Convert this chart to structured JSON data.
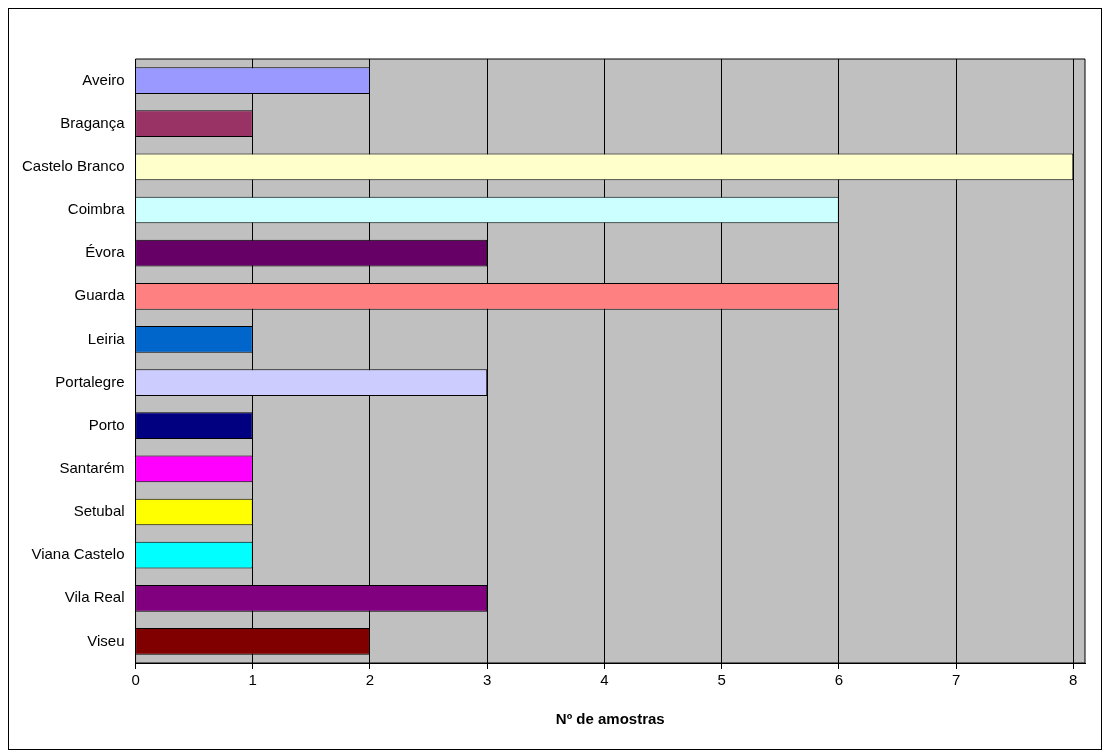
{
  "chart_data": {
    "type": "bar",
    "orientation": "horizontal",
    "xlabel": "Nº de amostras",
    "categories": [
      "Aveiro",
      "Bragança",
      "Castelo Branco",
      "Coimbra",
      "Évora",
      "Guarda",
      "Leiria",
      "Portalegre",
      "Porto",
      "Santarém",
      "Setubal",
      "Viana Castelo",
      "Vila Real",
      "Viseu"
    ],
    "values": [
      2,
      1,
      8,
      6,
      3,
      6,
      1,
      3,
      1,
      1,
      1,
      1,
      3,
      2
    ],
    "colors": [
      "#9999ff",
      "#993366",
      "#ffffcc",
      "#ccffff",
      "#660066",
      "#ff8080",
      "#0066cc",
      "#ccccff",
      "#000080",
      "#ff00ff",
      "#ffff00",
      "#00ffff",
      "#800080",
      "#800000"
    ],
    "xlim": [
      0,
      8.1
    ],
    "xticks": [
      0,
      1,
      2,
      3,
      4,
      5,
      6,
      7,
      8
    ],
    "grid": "x",
    "legend": false
  }
}
